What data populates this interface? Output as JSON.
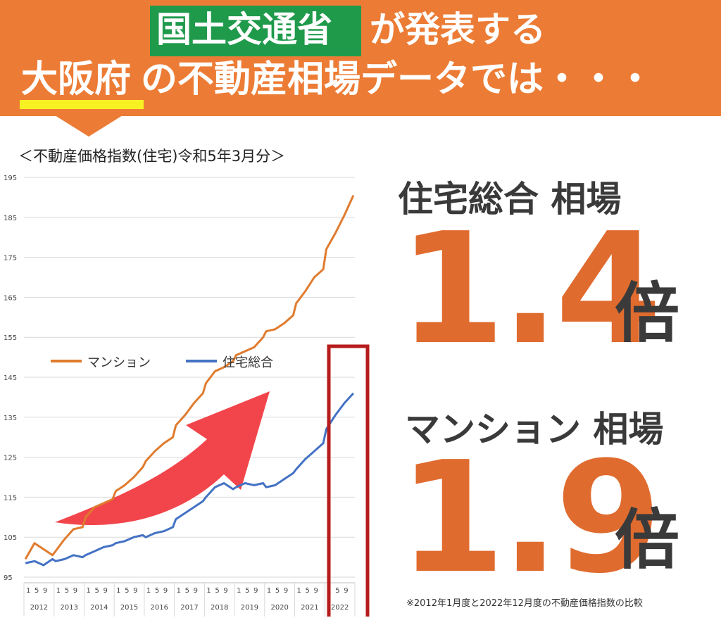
{
  "header": {
    "line1_highlight": "国土交通省",
    "line1_rest": "が発表する",
    "line2_highlight": "大阪府",
    "line2_rest": "の不動産相場データでは・・・"
  },
  "colors": {
    "banner": "#ec7c35",
    "highlight_box": "#1f9a4b",
    "underline": "#f7f123",
    "mansion": "#e07b2e",
    "housing": "#4472c4",
    "emphasis_box": "#b71c1c",
    "arrow": "#f2454b",
    "big_number": "#e06b2f"
  },
  "chart_data": {
    "type": "line",
    "title": "＜不動産価格指数(住宅)令和5年3月分＞",
    "ylim": [
      95,
      195
    ],
    "yticks": [
      "195",
      "185",
      "175",
      "165",
      "155",
      "145",
      "135",
      "125",
      "115",
      "105",
      "95"
    ],
    "month_ticks": [
      "1",
      "5",
      "9"
    ],
    "years": [
      "2012",
      "2013",
      "2014",
      "2015",
      "2016",
      "2017",
      "2018",
      "2019",
      "2020",
      "2021",
      "2022"
    ],
    "grid": true,
    "legend_position": "top-left",
    "series": [
      {
        "name": "マンション",
        "color": "#e07b2e",
        "yearly_points": [
          [
            2012,
            99.5,
            103.5,
            102.0,
            100.5
          ],
          [
            2013,
            101.5,
            104.5,
            107.0,
            107.5
          ],
          [
            2014,
            110.0,
            112.5,
            113.5,
            114.5
          ],
          [
            2015,
            116.5,
            118.0,
            120.0,
            122.5
          ],
          [
            2016,
            124.0,
            126.5,
            128.5,
            130.0
          ],
          [
            2017,
            133.0,
            135.5,
            138.5,
            141.0
          ],
          [
            2018,
            143.5,
            146.5,
            147.5,
            149.0
          ],
          [
            2019,
            150.5,
            151.5,
            152.5,
            155.0
          ],
          [
            2020,
            156.5,
            157.0,
            158.5,
            160.5
          ],
          [
            2021,
            163.5,
            166.5,
            170.0,
            172.0
          ],
          [
            2022,
            177.0,
            181.0,
            185.5,
            190.5
          ]
        ]
      },
      {
        "name": "住宅総合",
        "color": "#4472c4",
        "yearly_points": [
          [
            2012,
            98.5,
            99.0,
            98.0,
            99.5
          ],
          [
            2013,
            99.0,
            99.5,
            100.5,
            100.0
          ],
          [
            2014,
            100.5,
            101.5,
            102.5,
            103.0
          ],
          [
            2015,
            103.5,
            104.0,
            105.0,
            105.5
          ],
          [
            2016,
            105.0,
            106.0,
            106.5,
            107.5
          ],
          [
            2017,
            109.5,
            111.0,
            112.5,
            114.0
          ],
          [
            2018,
            115.0,
            117.5,
            118.5,
            117.0
          ],
          [
            2019,
            117.5,
            118.5,
            118.0,
            118.5
          ],
          [
            2020,
            117.5,
            118.0,
            119.5,
            121.0
          ],
          [
            2021,
            122.0,
            124.5,
            126.5,
            128.5
          ],
          [
            2022,
            132.0,
            135.5,
            138.5,
            141.0
          ]
        ]
      }
    ]
  },
  "right_panel": {
    "housing_label": "住宅総合 相場",
    "housing_value": "1.4",
    "housing_unit": "倍",
    "mansion_label": "マンション 相場",
    "mansion_value": "1.9",
    "mansion_unit": "倍",
    "footnote": "※2012年1月度と2022年12月度の不動産価格指数の比較"
  }
}
